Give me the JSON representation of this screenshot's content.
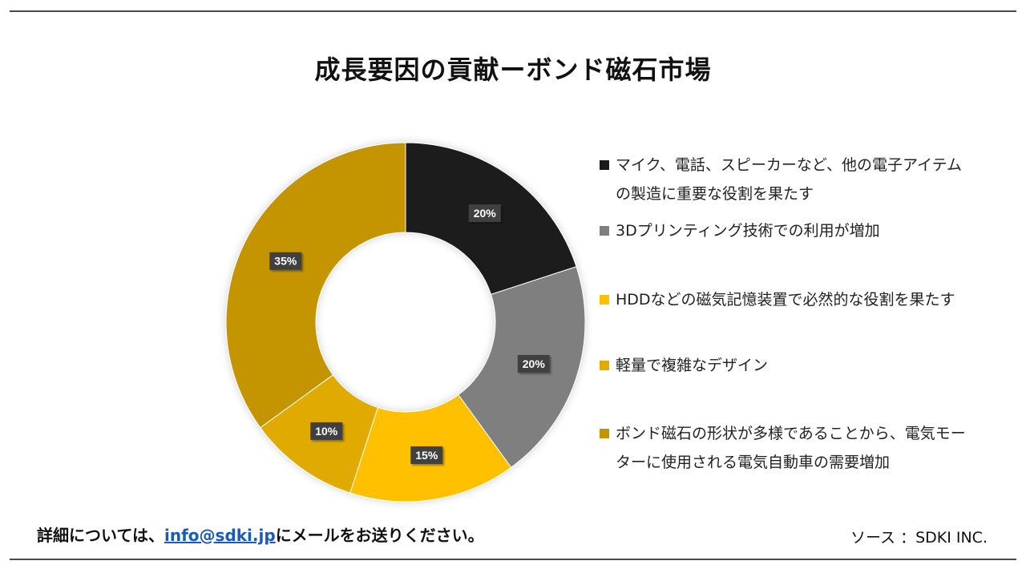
{
  "header": {
    "title": "成長要因の貢献ーボンド磁石市場"
  },
  "chart_data": {
    "type": "pie",
    "variant": "donut",
    "title": "成長要因の貢献ーボンド磁石市場",
    "legend_position": "right",
    "series": [
      {
        "name": "マイク、電話、スピーカーなど、他の電子アイテムの製造に重要な役割を果たす",
        "value": 20,
        "label": "20%",
        "color": "#1a1a1a"
      },
      {
        "name": "3Dプリンティング技術での利用が増加",
        "value": 20,
        "label": "20%",
        "color": "#7f7f7f"
      },
      {
        "name": "HDDなどの磁気記憶装置で必然的な役割を果たす",
        "value": 15,
        "label": "15%",
        "color": "#ffc000"
      },
      {
        "name": "軽量で複雑なデザイン",
        "value": 10,
        "label": "10%",
        "color": "#e0aa00"
      },
      {
        "name": "ボンド磁石の形状が多様であることから、電気モーターに使用される電気自動車の需要増加",
        "value": 35,
        "label": "35%",
        "color": "#c49500"
      }
    ]
  },
  "legend": {
    "items": [
      {
        "text": "マイク、電話、スピーカーなど、他の電子アイテムの製造に重要な役割を果たす",
        "color": "#1a1a1a"
      },
      {
        "text": "3Dプリンティング技術での利用が増加",
        "color": "#7f7f7f"
      },
      {
        "text": "HDDなどの磁気記憶装置で必然的な役割を果たす",
        "color": "#ffc000"
      },
      {
        "text": "軽量で複雑なデザイン",
        "color": "#e0aa00"
      },
      {
        "text": "ボンド磁石の形状が多様であることから、電気モーターに使用される電気自動車の需要増加",
        "color": "#c49500"
      }
    ]
  },
  "footer": {
    "contact_prefix": "詳細については、",
    "contact_email": "info@sdki.jp",
    "contact_suffix": "にメールをお送りください。",
    "source": "ソース ：SDKI INC."
  }
}
